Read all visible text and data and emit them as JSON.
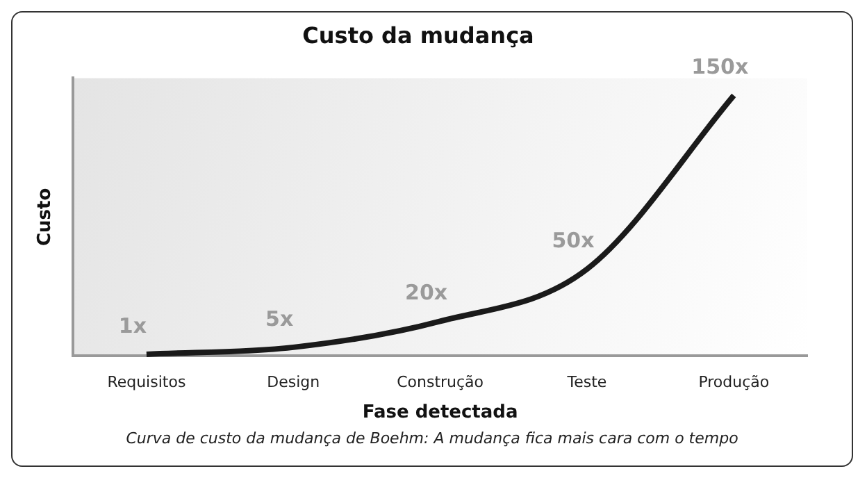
{
  "chart_data": {
    "type": "line",
    "title": "Custo da mudança",
    "xlabel": "Fase detectada",
    "ylabel": "Custo",
    "categories": [
      "Requisitos",
      "Design",
      "Construção",
      "Teste",
      "Produção"
    ],
    "series": [
      {
        "color": "#1a1a1a",
        "values": [
          1,
          5,
          20,
          50,
          150
        ],
        "value_labels": [
          "1x",
          "5x",
          "20x",
          "50x",
          "150x"
        ]
      }
    ],
    "annotations": [
      "Curva de custo da mudança de Boehm: A mudança fica mais cara com o tempo"
    ],
    "marker": "none",
    "grid": false,
    "legend": false
  }
}
